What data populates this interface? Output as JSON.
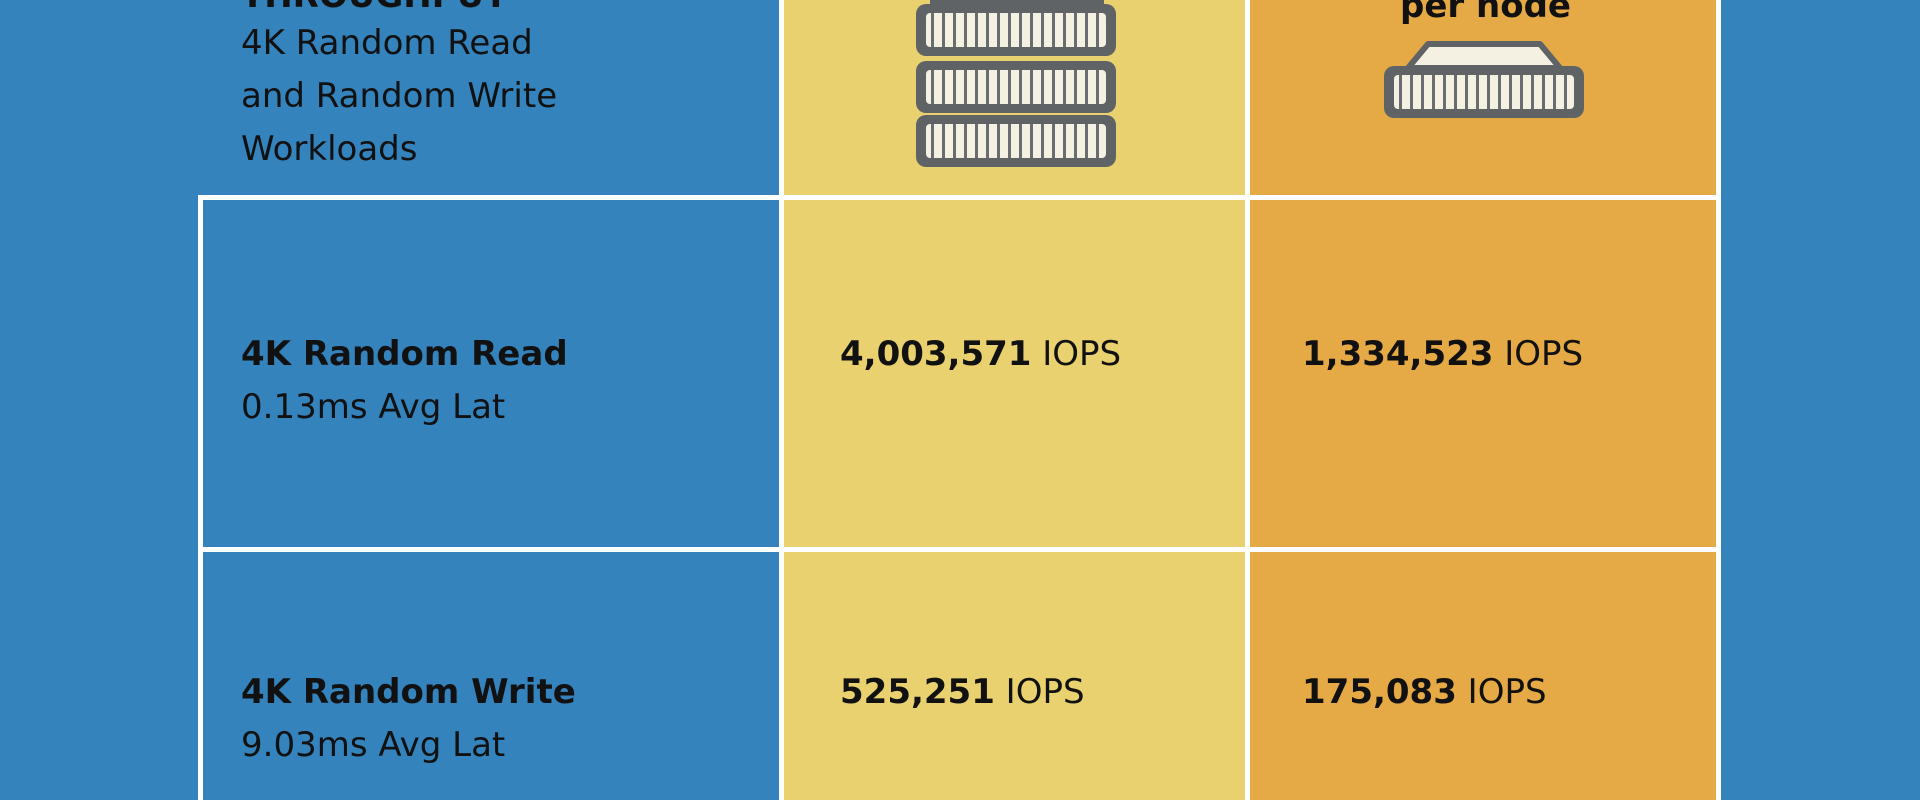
{
  "header": {
    "title": "THROUGHPUT",
    "subtitle_lines": [
      "4K Random Read",
      "and Random Write",
      "Workloads"
    ],
    "node_column": "per node"
  },
  "rows": [
    {
      "label": "4K Random Read",
      "latency": "0.13ms Avg Lat",
      "cluster_value": "4,003,571",
      "cluster_unit": "IOPS",
      "node_value": "1,334,523",
      "node_unit": "IOPS"
    },
    {
      "label": "4K Random Write",
      "latency": "9.03ms Avg Lat",
      "cluster_value": "525,251",
      "cluster_unit": "IOPS",
      "node_value": "175,083",
      "node_unit": "IOPS"
    }
  ]
}
